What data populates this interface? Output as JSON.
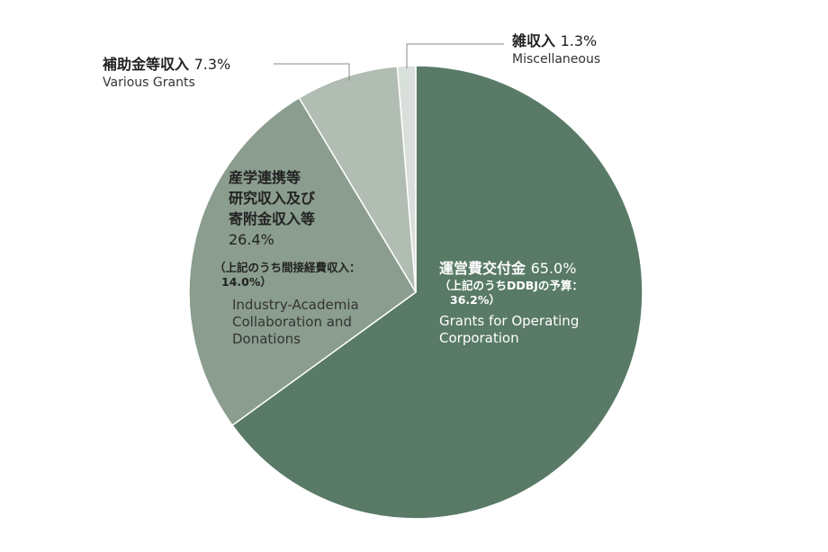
{
  "chart_data": {
    "type": "pie",
    "slices": [
      {
        "label_jp": "運営費交付金",
        "value": 65.0,
        "value_label": "65.0%",
        "note_line1": "（上記のうちDDBJの予算：",
        "note_line2": "36.2%）",
        "label_en_line1": "Grants for Operating",
        "label_en_line2": "Corporation",
        "color": "#587a66"
      },
      {
        "label_jp_line1": "産学連携等",
        "label_jp_line2": "研究収入及び",
        "label_jp_line3": "寄附金収入等",
        "value": 26.4,
        "value_label": "26.4%",
        "note_line1": "（上記のうち間接経費収入：",
        "note_line2": "14.0%）",
        "label_en_line1": "Industry-Academia",
        "label_en_line2": "Collaboration and",
        "label_en_line3": "Donations",
        "color": "#8a9d8e"
      },
      {
        "label_jp": "補助金等収入",
        "value": 7.3,
        "value_label": "7.3%",
        "label_en": "Various Grants",
        "color": "#b1bcb2"
      },
      {
        "label_jp": "雑収入",
        "value": 1.3,
        "value_label": "1.3%",
        "label_en": "Miscellaneous",
        "color": "#d9dfda"
      }
    ]
  }
}
